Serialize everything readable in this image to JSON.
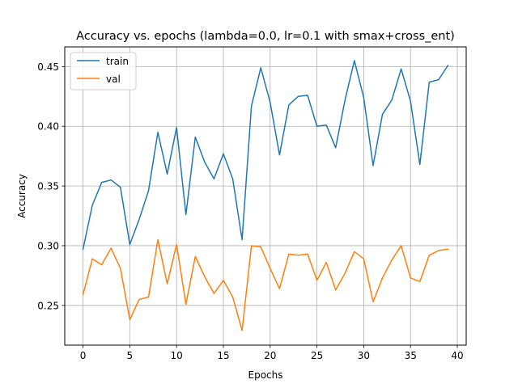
{
  "chart_data": {
    "type": "line",
    "title": "Accuracy vs. epochs (lambda=0.0, lr=0.1 with smax+cross_ent)",
    "xlabel": "Epochs",
    "ylabel": "Accuracy",
    "xlim": [
      -1.95,
      40.95
    ],
    "ylim": [
      0.2167,
      0.4665
    ],
    "xticks": [
      0,
      5,
      10,
      15,
      20,
      25,
      30,
      35,
      40
    ],
    "xtick_labels": [
      "0",
      "5",
      "10",
      "15",
      "20",
      "25",
      "30",
      "35",
      "40"
    ],
    "yticks": [
      0.25,
      0.3,
      0.35,
      0.4,
      0.45
    ],
    "ytick_labels": [
      "0.25",
      "0.30",
      "0.35",
      "0.40",
      "0.45"
    ],
    "grid": true,
    "legend_position": "top-left",
    "x": [
      0,
      1,
      2,
      3,
      4,
      5,
      6,
      7,
      8,
      9,
      10,
      11,
      12,
      13,
      14,
      15,
      16,
      17,
      18,
      19,
      20,
      21,
      22,
      23,
      24,
      25,
      26,
      27,
      28,
      29,
      30,
      31,
      32,
      33,
      34,
      35,
      36,
      37,
      38,
      39
    ],
    "series": [
      {
        "name": "train",
        "color": "#1f77b4",
        "values": [
          0.297,
          0.334,
          0.353,
          0.355,
          0.349,
          0.301,
          0.322,
          0.346,
          0.395,
          0.36,
          0.399,
          0.326,
          0.391,
          0.37,
          0.356,
          0.377,
          0.356,
          0.305,
          0.417,
          0.449,
          0.42,
          0.376,
          0.418,
          0.425,
          0.426,
          0.4,
          0.401,
          0.382,
          0.422,
          0.455,
          0.424,
          0.367,
          0.41,
          0.422,
          0.448,
          0.421,
          0.368,
          0.437,
          0.439,
          0.451
        ]
      },
      {
        "name": "val",
        "color": "#ff7f0e",
        "values": [
          0.259,
          0.289,
          0.284,
          0.298,
          0.281,
          0.238,
          0.255,
          0.257,
          0.305,
          0.268,
          0.301,
          0.251,
          0.291,
          0.274,
          0.26,
          0.271,
          0.257,
          0.229,
          0.3,
          0.299,
          0.281,
          0.264,
          0.293,
          0.292,
          0.293,
          0.271,
          0.286,
          0.263,
          0.277,
          0.295,
          0.289,
          0.253,
          0.273,
          0.288,
          0.3,
          0.273,
          0.27,
          0.292,
          0.296,
          0.297
        ]
      }
    ]
  }
}
